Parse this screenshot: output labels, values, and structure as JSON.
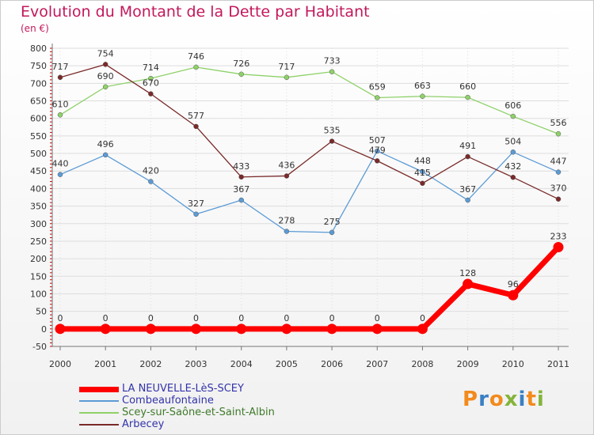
{
  "chart_data": {
    "type": "line",
    "title": "Evolution du Montant de la Dette par Habitant",
    "subtitle": "(en €)",
    "xlabel": "",
    "ylabel": "",
    "categories": [
      "2000",
      "2001",
      "2002",
      "2003",
      "2004",
      "2005",
      "2006",
      "2007",
      "2008",
      "2009",
      "2010",
      "2011"
    ],
    "ylim": [
      -50,
      800
    ],
    "yticks": [
      -50,
      0,
      50,
      100,
      150,
      200,
      250,
      300,
      350,
      400,
      450,
      500,
      550,
      600,
      650,
      700,
      750,
      800
    ],
    "grid": true,
    "legend_position": "bottom-left",
    "series": [
      {
        "name": "LA NEUVELLE-LèS-SCEY",
        "color": "#ff0000",
        "values": [
          0,
          0,
          0,
          0,
          0,
          0,
          0,
          0,
          0,
          128,
          96,
          233
        ]
      },
      {
        "name": "Combeaufontaine",
        "color": "#5b9bd5",
        "values": [
          440,
          496,
          420,
          327,
          367,
          278,
          275,
          507,
          448,
          367,
          504,
          447
        ]
      },
      {
        "name": "Scey-sur-Saône-et-Saint-Albin",
        "color": "#8fd16a",
        "values": [
          610,
          690,
          714,
          746,
          726,
          717,
          733,
          659,
          663,
          660,
          606,
          556
        ]
      },
      {
        "name": "Arbecey",
        "color": "#7a2a2a",
        "values": [
          717,
          754,
          670,
          577,
          433,
          436,
          535,
          479,
          415,
          491,
          432,
          370
        ]
      }
    ]
  },
  "logo": {
    "text": "Proxiti",
    "colors": [
      "#f28a1c",
      "#3a7fc4",
      "#f28a1c",
      "#84b43a",
      "#3a7fc4",
      "#f28a1c",
      "#84b43a"
    ]
  }
}
